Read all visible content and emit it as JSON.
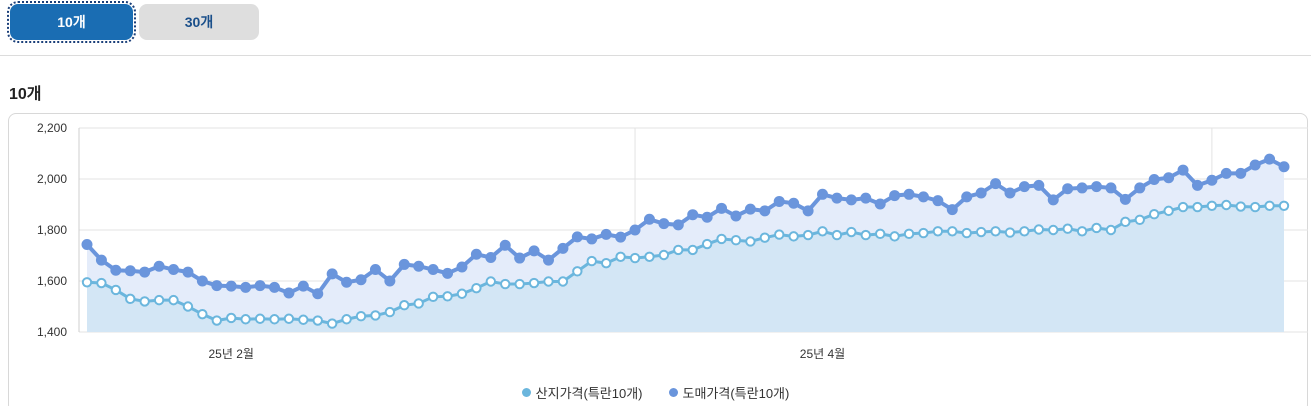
{
  "tabs": [
    {
      "label": "10개",
      "active": true
    },
    {
      "label": "30개",
      "active": false
    }
  ],
  "section_title": "10개",
  "colors": {
    "tab_active": "#1a6db3",
    "series_origin": "#6bb6dd",
    "series_wholesale": "#6a95dc",
    "area_origin": "#d3e6f5",
    "area_wholesale": "#e4ecfa"
  },
  "legend": [
    {
      "label": "산지가격(특란10개)",
      "color": "#6bb6dd"
    },
    {
      "label": "도매가격(특란10개)",
      "color": "#6a95dc"
    }
  ],
  "chart_data": {
    "type": "area",
    "ylim": [
      1400,
      2200
    ],
    "yticks": [
      "1,400",
      "1,600",
      "1,800",
      "2,000",
      "2,200"
    ],
    "x_tick_labels": [
      {
        "label": "25년 2월",
        "index": 10
      },
      {
        "label": "25년 4월",
        "index": 51
      }
    ],
    "vertical_gridlines_at_index": [
      38,
      78
    ],
    "grid": true,
    "legend_position": "bottom",
    "series": [
      {
        "name": "산지가격(특란10개)",
        "values": [
          1595,
          1592,
          1565,
          1530,
          1520,
          1525,
          1525,
          1500,
          1470,
          1445,
          1455,
          1450,
          1452,
          1450,
          1452,
          1448,
          1445,
          1433,
          1450,
          1462,
          1465,
          1478,
          1505,
          1512,
          1538,
          1540,
          1550,
          1572,
          1598,
          1588,
          1588,
          1592,
          1598,
          1598,
          1638,
          1678,
          1670,
          1695,
          1690,
          1695,
          1702,
          1722,
          1722,
          1745,
          1765,
          1760,
          1755,
          1770,
          1782,
          1775,
          1780,
          1795,
          1780,
          1792,
          1780,
          1785,
          1775,
          1785,
          1788,
          1795,
          1795,
          1788,
          1792,
          1795,
          1790,
          1795,
          1802,
          1800,
          1805,
          1795,
          1808,
          1800,
          1832,
          1840,
          1862,
          1875,
          1890,
          1890,
          1895,
          1898,
          1892,
          1890,
          1895,
          1895
        ]
      },
      {
        "name": "도매가격(특란10개)",
        "values": [
          1743,
          1682,
          1642,
          1640,
          1635,
          1658,
          1645,
          1635,
          1600,
          1582,
          1580,
          1575,
          1582,
          1575,
          1553,
          1580,
          1550,
          1628,
          1595,
          1605,
          1645,
          1600,
          1665,
          1658,
          1645,
          1630,
          1655,
          1705,
          1692,
          1740,
          1690,
          1718,
          1682,
          1728,
          1773,
          1765,
          1783,
          1772,
          1800,
          1842,
          1825,
          1820,
          1860,
          1850,
          1885,
          1855,
          1882,
          1875,
          1912,
          1905,
          1875,
          1940,
          1925,
          1918,
          1925,
          1902,
          1935,
          1940,
          1930,
          1915,
          1880,
          1930,
          1945,
          1982,
          1945,
          1970,
          1975,
          1918,
          1962,
          1965,
          1970,
          1965,
          1920,
          1965,
          1998,
          2005,
          2035,
          1975,
          1995,
          2022,
          2022,
          2055,
          2078,
          2048
        ]
      }
    ]
  }
}
